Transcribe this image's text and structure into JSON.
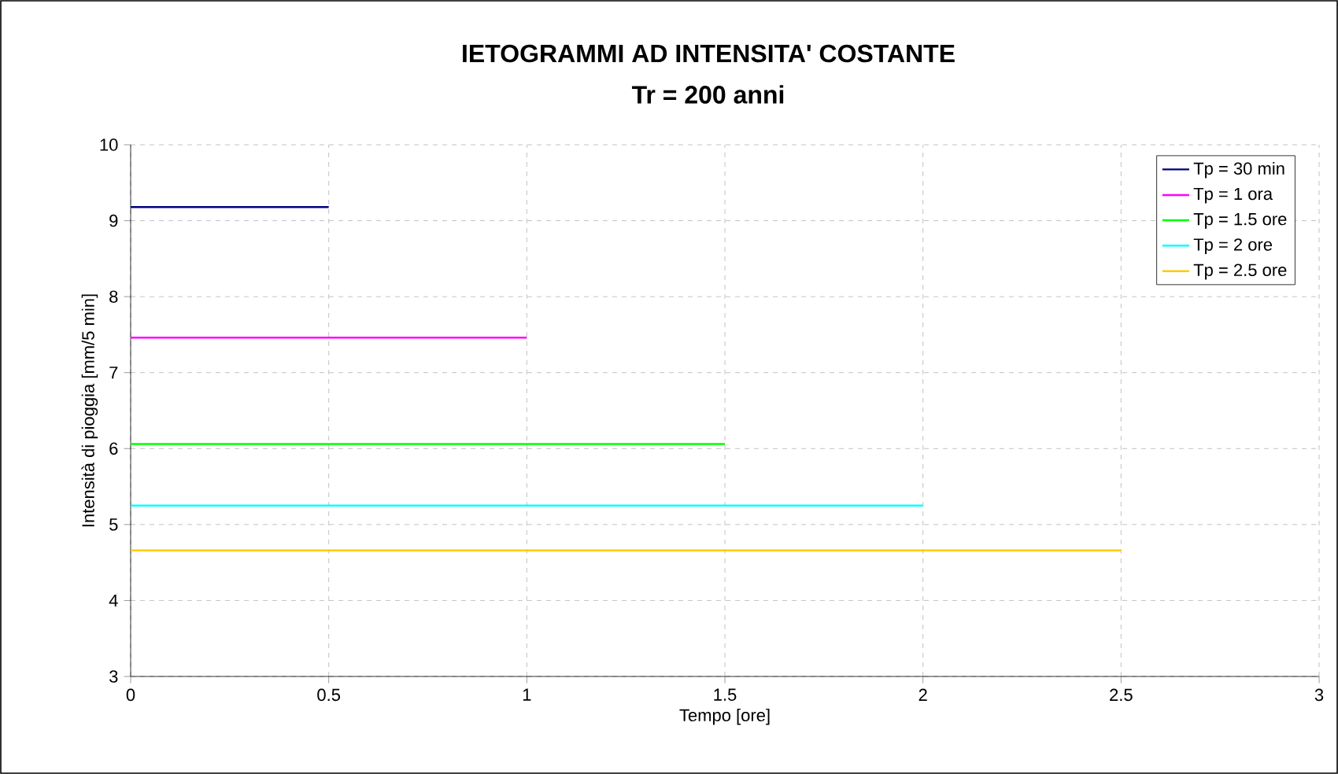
{
  "chart_data": {
    "type": "line",
    "title": "IETOGRAMMI AD INTENSITA' COSTANTE",
    "subtitle": "Tr = 200 anni",
    "xlabel": "Tempo [ore]",
    "ylabel": "Intensità di pioggia [mm/5 min]",
    "series": [
      {
        "name": "Tp = 30 min",
        "color": "#000080",
        "x": [
          0,
          0.5
        ],
        "values": [
          9.18,
          9.18
        ]
      },
      {
        "name": "Tp = 1 ora",
        "color": "#ff00ff",
        "x": [
          0,
          1
        ],
        "values": [
          7.46,
          7.46
        ]
      },
      {
        "name": "Tp = 1.5 ore",
        "color": "#00ff00",
        "x": [
          0,
          1.5
        ],
        "values": [
          6.06,
          6.06
        ]
      },
      {
        "name": "Tp = 2 ore",
        "color": "#00ffff",
        "x": [
          0,
          2
        ],
        "values": [
          5.25,
          5.25
        ]
      },
      {
        "name": "Tp = 2.5 ore",
        "color": "#ffcc00",
        "x": [
          0,
          2.5
        ],
        "values": [
          4.66,
          4.66
        ]
      }
    ],
    "xlim": [
      0,
      3
    ],
    "ylim": [
      3,
      10
    ],
    "xticks": [
      0,
      0.5,
      1,
      1.5,
      2,
      2.5,
      3
    ],
    "yticks": [
      3,
      4,
      5,
      6,
      7,
      8,
      9,
      10
    ],
    "grid": true,
    "legend": "top right",
    "marker": "none",
    "line_style": "solid"
  }
}
